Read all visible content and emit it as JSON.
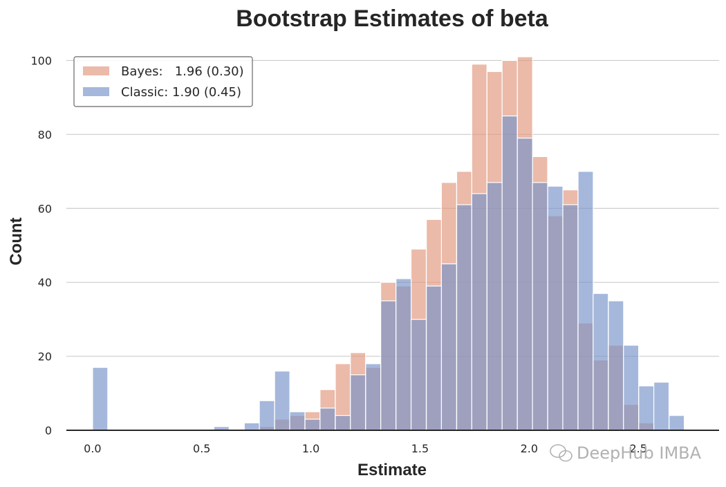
{
  "chart_data": {
    "type": "bar",
    "title": "Bootstrap Estimates of beta",
    "xlabel": "Estimate",
    "ylabel": "Count",
    "xlim": [
      -0.12,
      2.87
    ],
    "ylim": [
      0,
      107
    ],
    "xticks": [
      "0.0",
      "0.5",
      "1.0",
      "1.5",
      "2.0",
      "2.5"
    ],
    "yticks": [
      "0",
      "20",
      "40",
      "60",
      "80",
      "100"
    ],
    "grid": "horizontal",
    "legend_position": "top-left",
    "bin_width": 0.0695,
    "bin_starts": [
      0.0,
      0.069,
      0.139,
      0.208,
      0.278,
      0.347,
      0.417,
      0.486,
      0.556,
      0.625,
      0.695,
      0.764,
      0.834,
      0.903,
      0.973,
      1.042,
      1.112,
      1.181,
      1.251,
      1.32,
      1.39,
      1.459,
      1.529,
      1.598,
      1.668,
      1.737,
      1.807,
      1.876,
      1.946,
      2.015,
      2.085,
      2.154,
      2.224,
      2.293,
      2.363,
      2.432,
      2.502,
      2.571,
      2.641
    ],
    "series": [
      {
        "name": "Bayes:   1.96 (0.30)",
        "color": "#e1957b",
        "values": [
          0,
          0,
          0,
          0,
          0,
          0,
          0,
          0,
          0,
          0,
          0,
          1,
          3,
          4,
          5,
          11,
          18,
          21,
          17,
          40,
          39,
          49,
          57,
          67,
          70,
          99,
          97,
          100,
          101,
          74,
          58,
          65,
          29,
          19,
          23,
          7,
          2,
          0,
          0
        ]
      },
      {
        "name": "Classic: 1.90 (0.45)",
        "color": "#7492c8",
        "values": [
          17,
          0,
          0,
          0,
          0,
          0,
          0,
          0,
          1,
          0,
          2,
          8,
          16,
          5,
          3,
          6,
          4,
          15,
          18,
          35,
          41,
          30,
          39,
          45,
          61,
          64,
          67,
          85,
          79,
          67,
          66,
          61,
          70,
          37,
          35,
          23,
          12,
          13,
          4
        ]
      }
    ],
    "legend": [
      {
        "label": "Bayes:   1.96 (0.30)",
        "color": "#e1957b"
      },
      {
        "label": "Classic: 1.90 (0.45)",
        "color": "#7492c8"
      }
    ],
    "bar_alpha": 0.65,
    "watermark": "DeepHub IMBA"
  }
}
